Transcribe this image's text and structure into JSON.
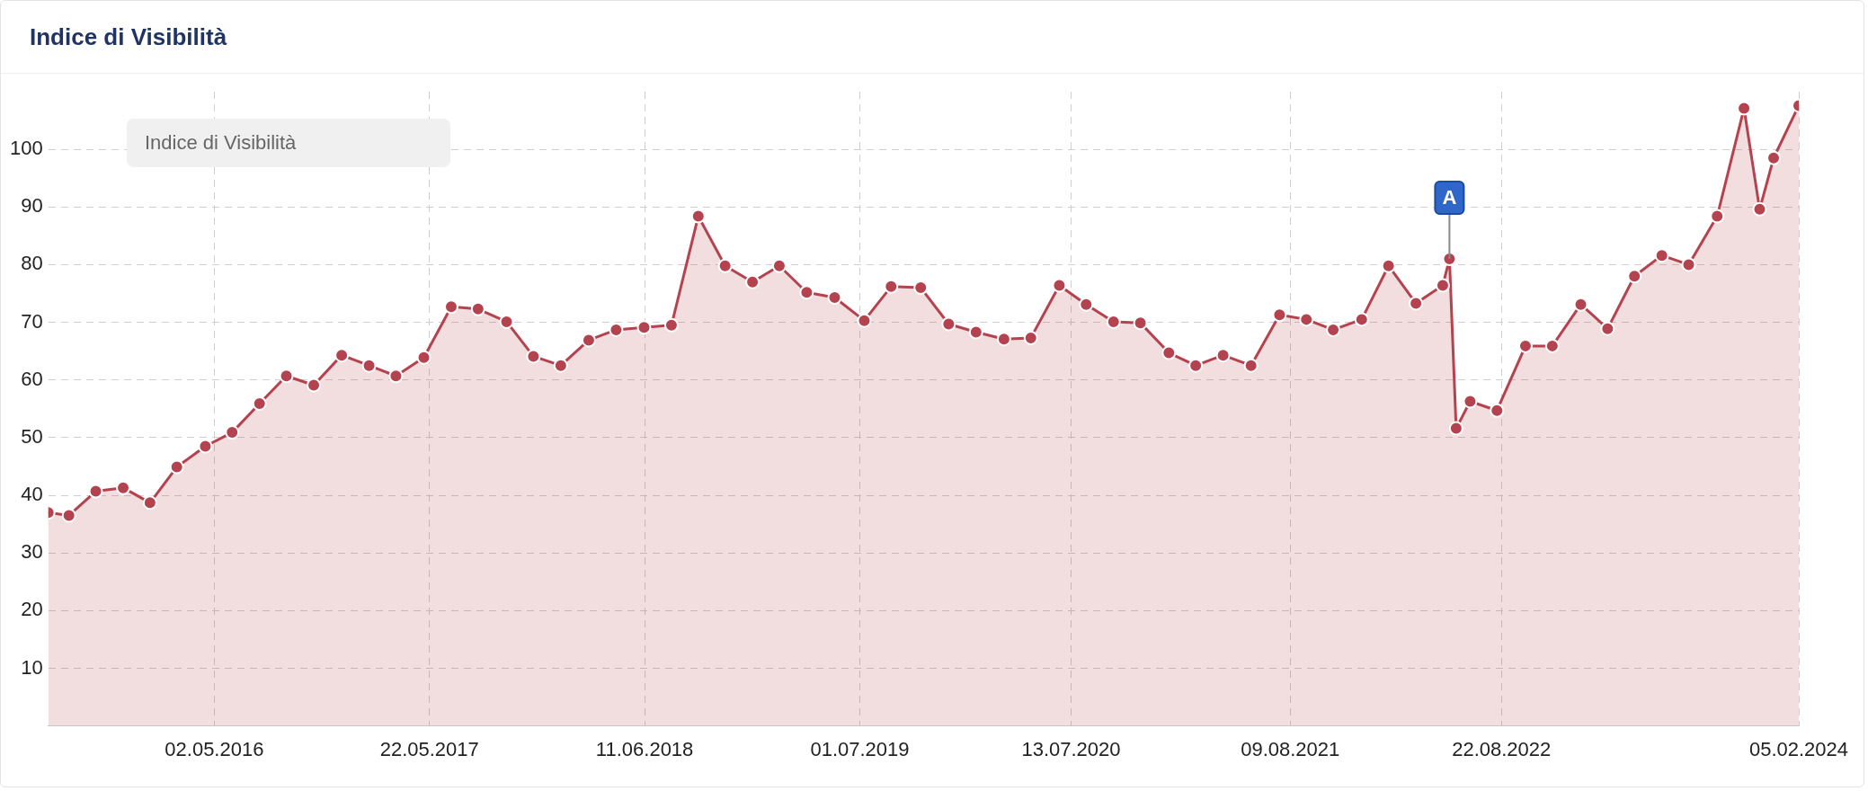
{
  "chart_data": {
    "type": "area",
    "title": "Indice di Visibilità",
    "legend_title": "Indice di Visibilità",
    "grid": true,
    "marker": "circle",
    "line_style": "solid",
    "xlim": [
      "2015-07-10",
      "2024-02-05"
    ],
    "ylim": [
      0,
      110
    ],
    "xticks": [
      {
        "value": "2016-05-02",
        "label": "02.05.2016"
      },
      {
        "value": "2017-05-22",
        "label": "22.05.2017"
      },
      {
        "value": "2018-06-11",
        "label": "11.06.2018"
      },
      {
        "value": "2019-07-01",
        "label": "01.07.2019"
      },
      {
        "value": "2020-07-13",
        "label": "13.07.2020"
      },
      {
        "value": "2021-08-09",
        "label": "09.08.2021"
      },
      {
        "value": "2022-08-22",
        "label": "22.08.2022"
      },
      {
        "value": "2024-02-05",
        "label": "05.02.2024"
      }
    ],
    "yticks": [
      10,
      20,
      30,
      40,
      50,
      60,
      70,
      80,
      90,
      100
    ],
    "annotations": [
      {
        "text": "A",
        "x": "2022-05-21",
        "y": 81
      }
    ],
    "series": [
      {
        "color": "#b5434f",
        "x": [
          "2015-07-10",
          "2015-08-16",
          "2015-10-03",
          "2015-11-21",
          "2016-01-08",
          "2016-02-25",
          "2016-04-16",
          "2016-06-03",
          "2016-07-22",
          "2016-09-08",
          "2016-10-27",
          "2016-12-16",
          "2017-02-03",
          "2017-03-23",
          "2017-05-12",
          "2017-06-30",
          "2017-08-17",
          "2017-10-07",
          "2017-11-24",
          "2018-01-12",
          "2018-03-03",
          "2018-04-21",
          "2018-06-10",
          "2018-07-29",
          "2018-09-15",
          "2018-11-02",
          "2018-12-21",
          "2019-02-07",
          "2019-03-28",
          "2019-05-17",
          "2019-07-09",
          "2019-08-26",
          "2019-10-18",
          "2019-12-07",
          "2020-01-25",
          "2020-03-15",
          "2020-05-02",
          "2020-06-22",
          "2020-08-09",
          "2020-09-27",
          "2020-11-14",
          "2021-01-04",
          "2021-02-21",
          "2021-04-11",
          "2021-05-31",
          "2021-07-21",
          "2021-09-07",
          "2021-10-25",
          "2021-12-15",
          "2022-02-01",
          "2022-03-22",
          "2022-05-09",
          "2022-05-21",
          "2022-06-02",
          "2022-06-27",
          "2022-08-14",
          "2022-10-04",
          "2022-11-21",
          "2023-01-11",
          "2023-02-28",
          "2023-04-17",
          "2023-06-05",
          "2023-07-23",
          "2023-09-12",
          "2023-10-30",
          "2023-11-27",
          "2023-12-22",
          "2024-02-05"
        ],
        "values": [
          37,
          36.5,
          40.7,
          41.3,
          38.7,
          44.9,
          48.5,
          50.9,
          55.9,
          60.7,
          59.1,
          64.3,
          62.5,
          60.7,
          63.9,
          72.7,
          72.3,
          70.1,
          64.1,
          62.5,
          66.9,
          68.7,
          69.1,
          69.5,
          88.4,
          79.8,
          77,
          79.8,
          75.2,
          74.3,
          70.3,
          76.2,
          76,
          69.7,
          68.3,
          67.1,
          67.3,
          76.4,
          73.1,
          70.1,
          69.9,
          64.7,
          62.5,
          64.3,
          62.5,
          71.3,
          70.5,
          68.7,
          70.5,
          79.8,
          73.3,
          76.4,
          81,
          51.6,
          56.3,
          54.7,
          65.9,
          65.9,
          73.1,
          68.9,
          78,
          81.6,
          80,
          88.4,
          107.1,
          89.6,
          98.5,
          107.6
        ]
      }
    ]
  }
}
